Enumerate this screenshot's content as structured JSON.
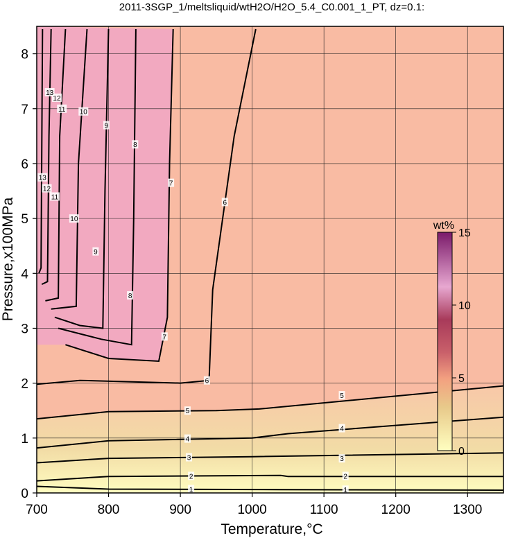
{
  "chart_data": {
    "type": "heatmap",
    "title": "2011-3SGP_1/meltsliquid/wtH2O/H2O_5.4_C0.001_1_PT, dz=0.1:",
    "xlabel": "Temperature,°C",
    "ylabel": "Pressure,x100MPa",
    "xlim": [
      700,
      1350
    ],
    "ylim": [
      0,
      8.5
    ],
    "x_ticks": [
      700,
      800,
      900,
      1000,
      1100,
      1200,
      1300
    ],
    "y_ticks": [
      0,
      1,
      2,
      3,
      4,
      5,
      6,
      7,
      8
    ],
    "grid": true,
    "colorbar": {
      "title": "wt%",
      "min": 0,
      "max": 15,
      "ticks": [
        0,
        5,
        10,
        15
      ],
      "position": "right-inside"
    },
    "background_value": 5.4,
    "contours": [
      {
        "value": 1,
        "points": [
          [
            700,
            0.12
          ],
          [
            800,
            0.07
          ],
          [
            1040,
            0.06
          ],
          [
            1350,
            0.05
          ]
        ]
      },
      {
        "value": 2,
        "points": [
          [
            700,
            0.22
          ],
          [
            800,
            0.3
          ],
          [
            1040,
            0.32
          ],
          [
            1050,
            0.3
          ],
          [
            1350,
            0.3
          ]
        ]
      },
      {
        "value": 3,
        "points": [
          [
            700,
            0.55
          ],
          [
            800,
            0.63
          ],
          [
            1000,
            0.66
          ],
          [
            1350,
            0.73
          ]
        ]
      },
      {
        "value": 4,
        "points": [
          [
            700,
            0.82
          ],
          [
            800,
            0.95
          ],
          [
            1000,
            1.0
          ],
          [
            1050,
            1.08
          ],
          [
            1350,
            1.38
          ]
        ]
      },
      {
        "value": 5,
        "points": [
          [
            700,
            1.35
          ],
          [
            800,
            1.48
          ],
          [
            950,
            1.5
          ],
          [
            1010,
            1.53
          ],
          [
            1350,
            1.95
          ]
        ]
      },
      {
        "value": 6,
        "points": [
          [
            700,
            1.98
          ],
          [
            760,
            2.05
          ],
          [
            900,
            2.0
          ],
          [
            940,
            2.05
          ],
          [
            945,
            3.7
          ],
          [
            975,
            6.5
          ],
          [
            1005,
            8.45
          ]
        ]
      },
      {
        "value": 7,
        "points": [
          [
            740,
            2.7
          ],
          [
            800,
            2.45
          ],
          [
            870,
            2.4
          ],
          [
            882,
            3.2
          ],
          [
            885,
            6.0
          ],
          [
            890,
            8.45
          ]
        ]
      },
      {
        "value": 8,
        "points": [
          [
            730,
            3.0
          ],
          [
            790,
            2.8
          ],
          [
            832,
            2.7
          ],
          [
            835,
            5.0
          ],
          [
            838,
            8.45
          ]
        ]
      },
      {
        "value": 9,
        "points": [
          [
            725,
            3.2
          ],
          [
            760,
            3.05
          ],
          [
            792,
            3.0
          ],
          [
            795,
            5.5
          ],
          [
            800,
            8.45
          ]
        ]
      },
      {
        "value": 10,
        "points": [
          [
            720,
            3.35
          ],
          [
            755,
            3.4
          ],
          [
            758,
            6.0
          ],
          [
            770,
            8.45
          ]
        ]
      },
      {
        "value": 11,
        "points": [
          [
            712,
            3.5
          ],
          [
            730,
            3.55
          ],
          [
            732,
            6.5
          ],
          [
            740,
            8.45
          ]
        ]
      },
      {
        "value": 12,
        "points": [
          [
            707,
            3.8
          ],
          [
            715,
            3.85
          ],
          [
            717,
            6.5
          ],
          [
            720,
            8.45
          ]
        ]
      },
      {
        "value": 13,
        "points": [
          [
            703,
            4.0
          ],
          [
            706,
            4.1
          ],
          [
            708,
            8.45
          ]
        ]
      }
    ],
    "contour_labels": [
      {
        "text": "1",
        "x": 915,
        "y": 0.07
      },
      {
        "text": "1",
        "x": 1130,
        "y": 0.06
      },
      {
        "text": "2",
        "x": 915,
        "y": 0.31
      },
      {
        "text": "2",
        "x": 1130,
        "y": 0.31
      },
      {
        "text": "3",
        "x": 912,
        "y": 0.65
      },
      {
        "text": "3",
        "x": 1125,
        "y": 0.63
      },
      {
        "text": "4",
        "x": 910,
        "y": 0.99
      },
      {
        "text": "4",
        "x": 1125,
        "y": 1.18
      },
      {
        "text": "5",
        "x": 910,
        "y": 1.5
      },
      {
        "text": "5",
        "x": 1125,
        "y": 1.78
      },
      {
        "text": "6",
        "x": 937,
        "y": 2.05
      },
      {
        "text": "6",
        "x": 962,
        "y": 5.3
      },
      {
        "text": "7",
        "x": 878,
        "y": 2.85
      },
      {
        "text": "7",
        "x": 887,
        "y": 5.65
      },
      {
        "text": "8",
        "x": 830,
        "y": 3.6
      },
      {
        "text": "8",
        "x": 837,
        "y": 6.35
      },
      {
        "text": "9",
        "x": 782,
        "y": 4.4
      },
      {
        "text": "9",
        "x": 797,
        "y": 6.7
      },
      {
        "text": "10",
        "x": 752,
        "y": 5.0
      },
      {
        "text": "10",
        "x": 765,
        "y": 6.95
      },
      {
        "text": "11",
        "x": 725,
        "y": 5.4
      },
      {
        "text": "11",
        "x": 735,
        "y": 7.0
      },
      {
        "text": "12",
        "x": 714,
        "y": 5.55
      },
      {
        "text": "12",
        "x": 728,
        "y": 7.2
      },
      {
        "text": "13",
        "x": 708,
        "y": 5.75
      },
      {
        "text": "13",
        "x": 718,
        "y": 7.3
      }
    ]
  }
}
